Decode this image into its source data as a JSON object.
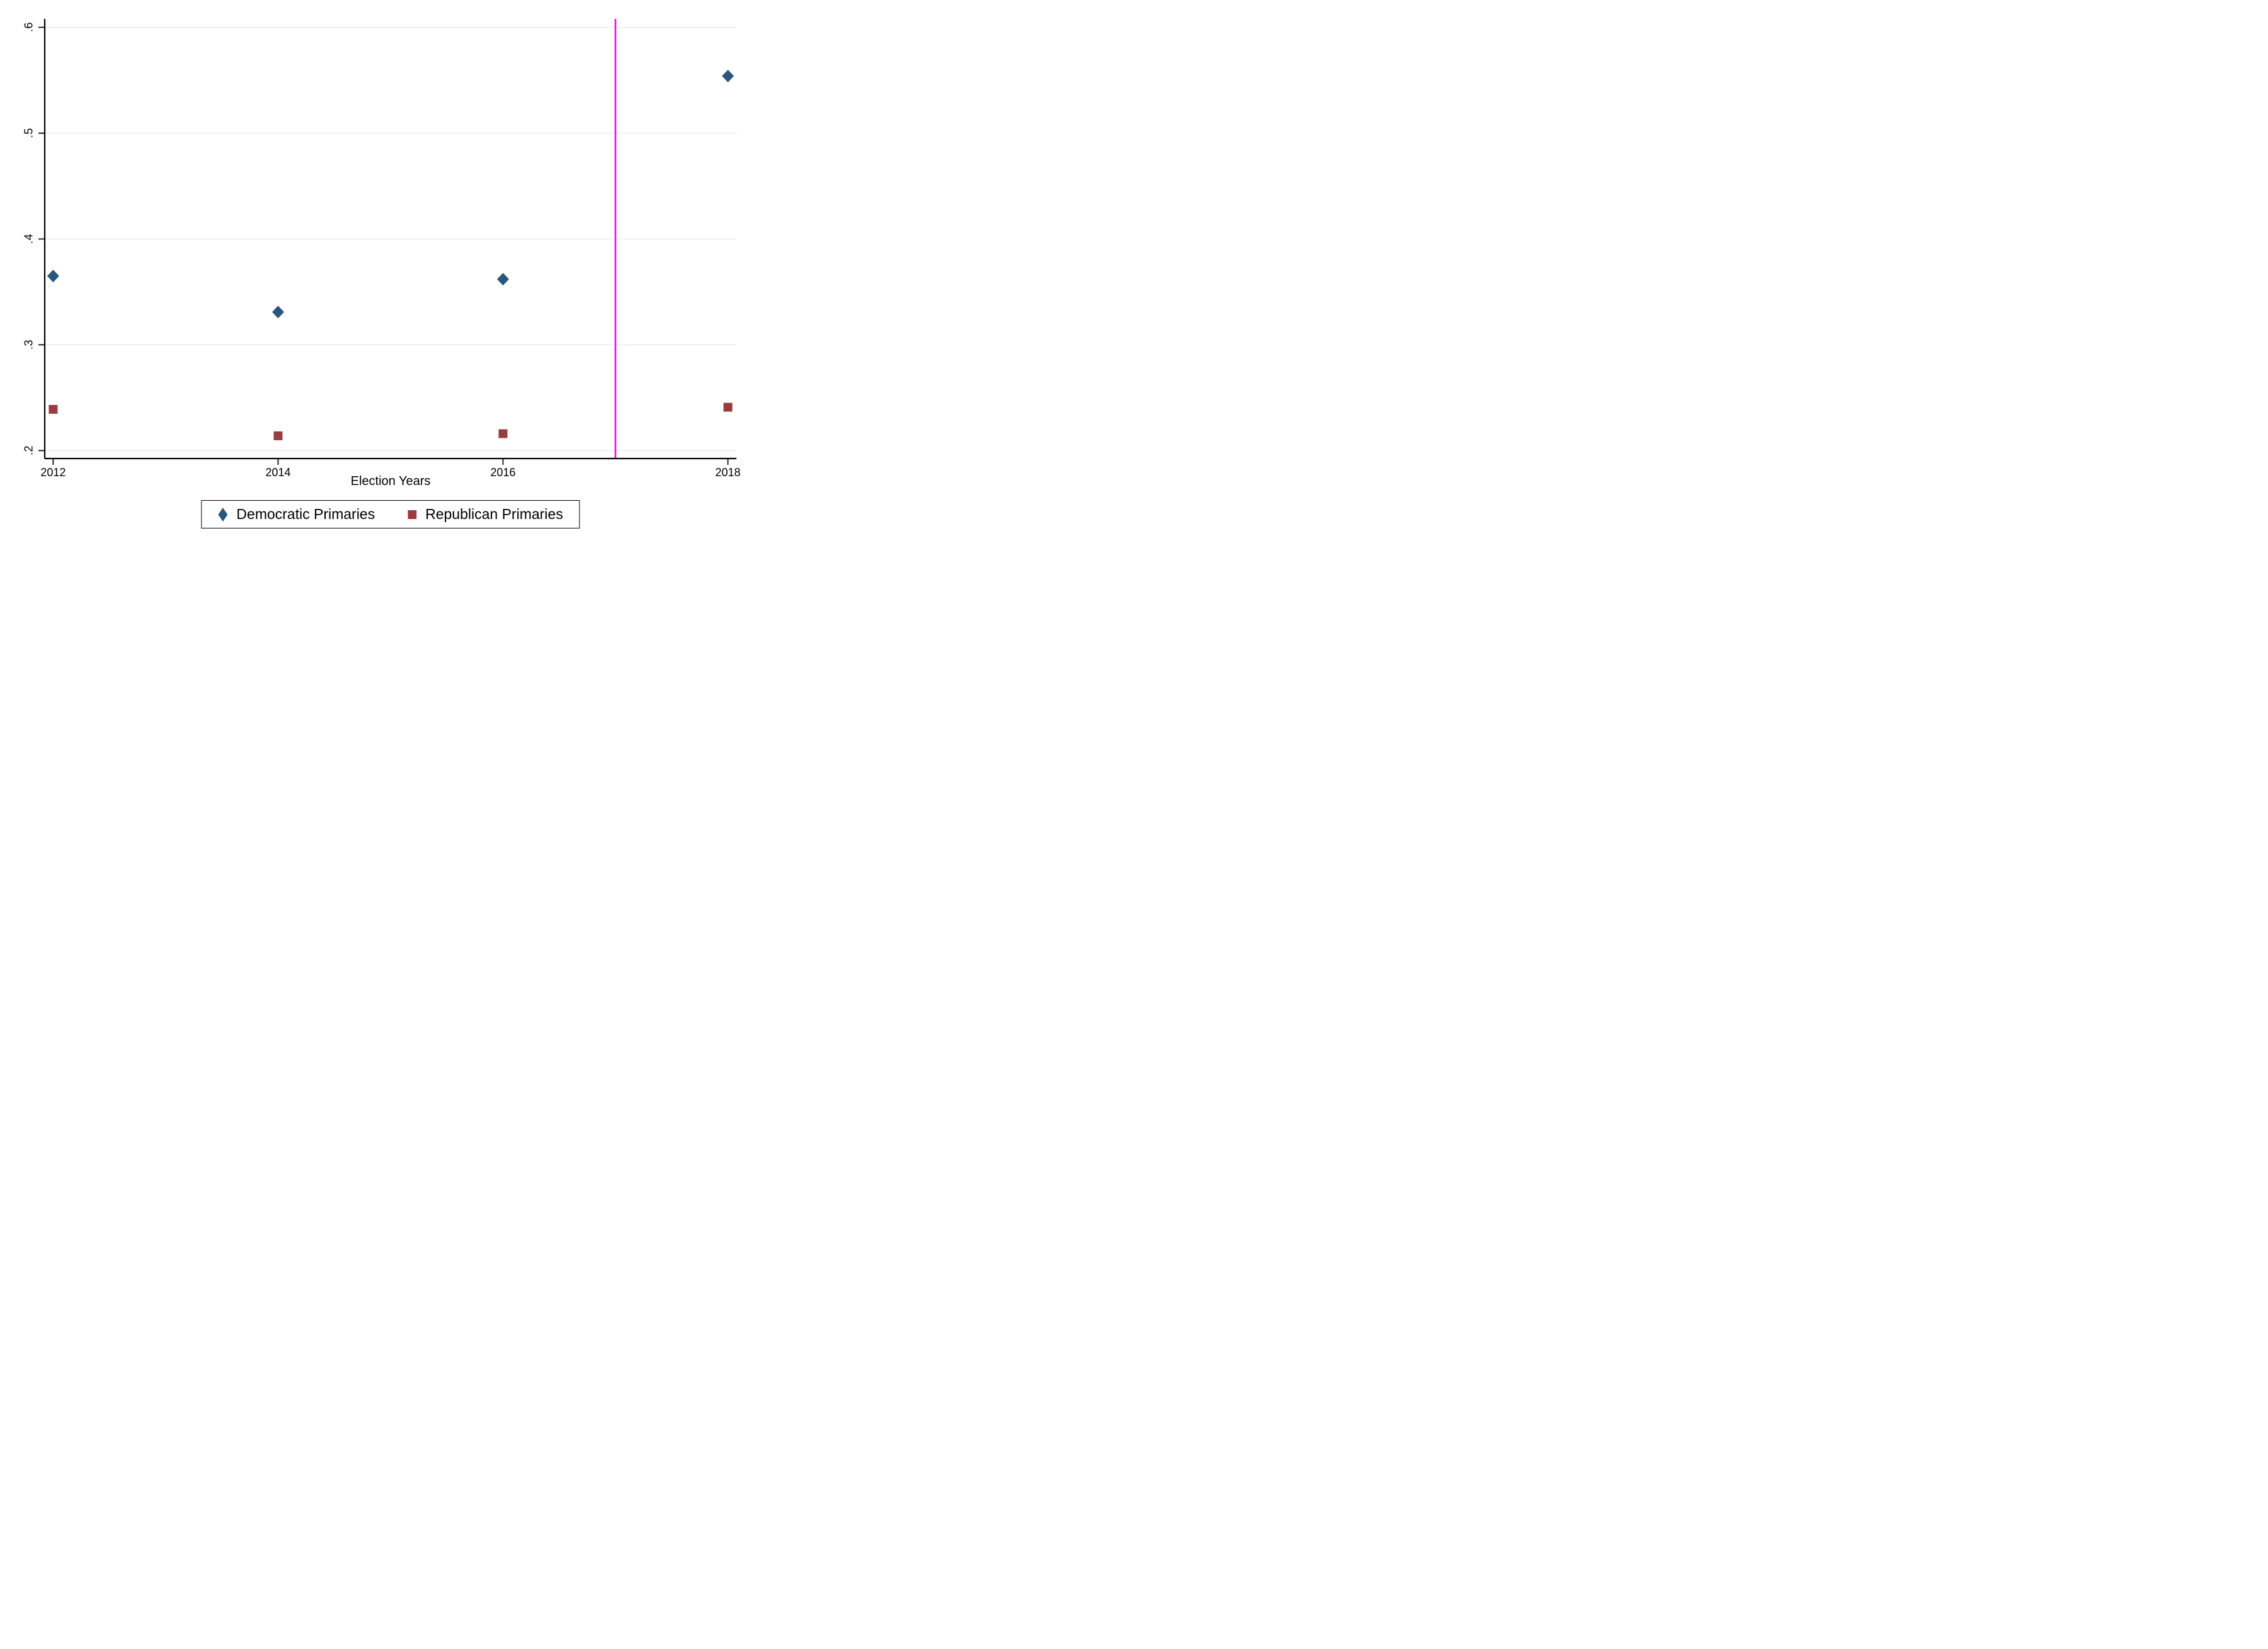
{
  "chart_data": {
    "type": "scatter",
    "title": "",
    "xlabel": "Election Years",
    "ylabel": "",
    "x": [
      2012,
      2014,
      2016,
      2018
    ],
    "series": [
      {
        "name": "Democratic Primaries",
        "marker": "diamond",
        "color": "#2a567c",
        "values": [
          0.365,
          0.331,
          0.362,
          0.554
        ]
      },
      {
        "name": "Republican Primaries",
        "marker": "square",
        "color": "#993b3f",
        "values": [
          0.239,
          0.214,
          0.216,
          0.241
        ]
      }
    ],
    "vline": {
      "x": 2017,
      "color": "#ff00ff"
    },
    "xticks": {
      "values": [
        2012,
        2014,
        2016,
        2018
      ],
      "labels": [
        "2012",
        "2014",
        "2016",
        "2018"
      ]
    },
    "yticks": {
      "values": [
        0.2,
        0.3,
        0.4,
        0.5,
        0.6
      ],
      "labels": [
        ".2",
        ".3",
        ".4",
        ".5",
        ".6"
      ]
    },
    "xlim": [
      2011.925,
      2018.076
    ],
    "ylim": [
      0.1925,
      0.608
    ],
    "grid": "horizontal",
    "grid_color": "#eaf2f3",
    "axis_color": "#000000",
    "background_color": "#ffffff",
    "legend_position": "bottom-center"
  }
}
